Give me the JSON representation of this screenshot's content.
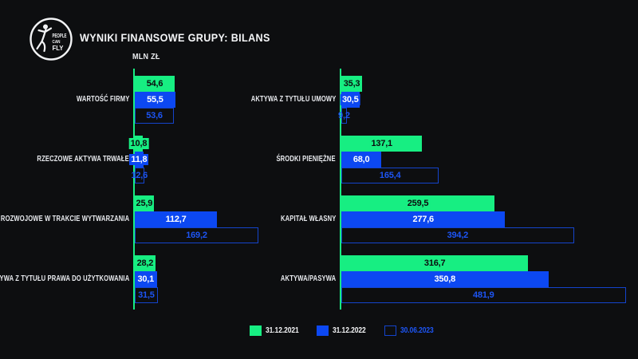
{
  "header": {
    "title": "WYNIKI FINANSOWE GRUPY: BILANS",
    "units_label": "MLN ZŁ",
    "logo_lines": {
      "line1": "PEOPLE",
      "line2": "CAN",
      "line3": "FLY"
    }
  },
  "colors": {
    "background": "#0d0e10",
    "green": "#17ee82",
    "blue": "#0c48f2",
    "outline_blue": "#1444cc",
    "value_blue": "#1d55f5",
    "text": "#f2f3f5"
  },
  "legend": [
    {
      "label": "31.12.2021",
      "style": "green"
    },
    {
      "label": "31.12.2022",
      "style": "blue"
    },
    {
      "label": "30.06.2023",
      "style": "outline"
    }
  ],
  "chart_data": {
    "type": "bar",
    "orientation": "horizontal",
    "title": "WYNIKI FINANSOWE GRUPY: BILANS",
    "unit": "MLN ZŁ",
    "decimal_separator": ",",
    "grid": false,
    "legend_position": "bottom",
    "series_names": [
      "31.12.2021",
      "31.12.2022",
      "30.06.2023"
    ],
    "panels": [
      {
        "id": "left",
        "xlim": [
          0,
          175
        ],
        "groups": [
          {
            "category": "WARTOŚĆ FIRMY",
            "values": [
              54.6,
              55.5,
              53.6
            ]
          },
          {
            "category": "RZECZOWE AKTYWA TRWAŁE",
            "values": [
              10.8,
              11.8,
              12.6
            ]
          },
          {
            "category": "PRACE ROZWOJOWE W TRAKCIE WYTWARZANIA",
            "values": [
              25.9,
              112.7,
              169.2
            ]
          },
          {
            "category": "AKTYWA Z TYTUŁU PRAWA DO UŻYTKOWANIA",
            "values": [
              28.2,
              30.1,
              31.5
            ]
          }
        ]
      },
      {
        "id": "right",
        "xlim": [
          0,
          490
        ],
        "groups": [
          {
            "category": "AKTYWA Z TYTUŁU UMOWY",
            "values": [
              35.3,
              30.5,
              9.2
            ]
          },
          {
            "category": "ŚRODKI PIENIĘŻNE",
            "values": [
              137.1,
              68.0,
              165.4
            ]
          },
          {
            "category": "KAPITAŁ WŁASNY",
            "values": [
              259.5,
              277.6,
              394.2
            ]
          },
          {
            "category": "AKTYWA/PASYWA",
            "values": [
              316.7,
              350.8,
              481.9
            ]
          }
        ]
      }
    ]
  }
}
